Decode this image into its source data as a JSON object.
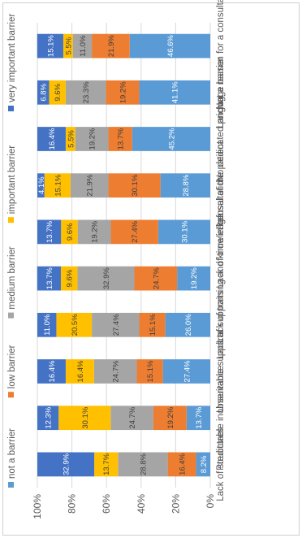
{
  "chart_data": {
    "type": "bar",
    "stacked": true,
    "percent": true,
    "orientation": "vertical",
    "image_rotated": "90° counter-clockwise",
    "categories": [
      "Lack of structures",
      "Predictable inobservance",
      "Unsuitable supports",
      "Lack of supports",
      "Lack of training and knowledge",
      "Lack of time in consultation",
      "Refusal of the patient",
      "No dedicated pricing",
      "Language barrier",
      "Not a reason for a consultation"
    ],
    "series": [
      {
        "name": "not a barrier",
        "color": "#5B9BD5",
        "values": [
          8.2,
          13.7,
          27.4,
          26.0,
          19.2,
          30.1,
          28.8,
          45.2,
          41.1,
          46.6
        ],
        "labels": [
          "8.2%",
          "13.7%",
          "27.4%",
          "26.0%",
          "19.2%",
          "30.1%",
          "28.8%",
          "45.2%",
          "41.1%",
          "46.6%"
        ]
      },
      {
        "name": "low barrier",
        "color": "#ED7D31",
        "values": [
          16.4,
          19.2,
          15.1,
          15.1,
          24.7,
          27.4,
          30.1,
          13.7,
          19.2,
          21.9
        ],
        "labels": [
          "16.4%",
          "19.2%",
          "15.1%",
          "15.1%",
          "24.7%",
          "27.4%",
          "30.1%",
          "13.7%",
          "19.2%",
          "21.9%"
        ]
      },
      {
        "name": "medium barrier",
        "color": "#A5A5A5",
        "values": [
          28.8,
          24.7,
          24.7,
          27.4,
          32.9,
          19.2,
          21.9,
          19.2,
          23.3,
          11.0
        ],
        "labels": [
          "28.8%",
          "24.7%",
          "24.7%",
          "27.4%",
          "32.9%",
          "19.2%",
          "21.9%",
          "19.2%",
          "23.3%",
          "11.0%"
        ]
      },
      {
        "name": "important barrier",
        "color": "#FFC000",
        "values": [
          13.7,
          30.1,
          16.4,
          20.5,
          9.6,
          9.6,
          15.1,
          5.5,
          9.6,
          5.5
        ],
        "labels": [
          "13.7%",
          "30.1%",
          "16.4%",
          "20.5%",
          "9.6%",
          "9.6%",
          "15.1%",
          "5.5%",
          "9.6%",
          "5.5%"
        ]
      },
      {
        "name": "very important barrier",
        "color": "#4472C4",
        "values": [
          32.9,
          12.3,
          16.4,
          11.0,
          13.7,
          13.7,
          4.1,
          16.4,
          6.8,
          15.1
        ],
        "labels": [
          "32.9%",
          "12.3%",
          "16.4%",
          "11.0%",
          "13.7%",
          "13.7%",
          "4.1%",
          "16.4%",
          "6.8%",
          "15.1%"
        ]
      }
    ],
    "y_ticks": [
      "0%",
      "20%",
      "40%",
      "60%",
      "80%",
      "100%"
    ],
    "ylim": [
      0,
      100
    ],
    "legend_position": "top",
    "grid": true,
    "gridline_color": "#D9D9D9",
    "label_dark_color": "#404040",
    "label_light_color": "#FFFFFF"
  }
}
